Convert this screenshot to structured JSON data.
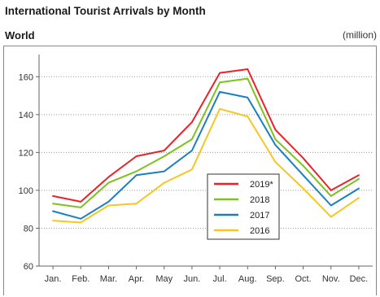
{
  "header": {
    "title": "International Tourist Arrivals by Month",
    "region": "World",
    "unit": "(million)"
  },
  "chart_data": {
    "type": "line",
    "title": "International Tourist Arrivals by Month",
    "xlabel": "",
    "ylabel": "(million)",
    "categories": [
      "Jan.",
      "Feb.",
      "Mar.",
      "Apr.",
      "May",
      "Jun.",
      "Jul.",
      "Aug.",
      "Sep.",
      "Oct.",
      "Nov.",
      "Dec."
    ],
    "ylim": [
      60,
      170
    ],
    "yticks": [
      60,
      80,
      100,
      120,
      140,
      160
    ],
    "grid": "horizontal-dotted",
    "legend_position": "center-right",
    "series": [
      {
        "name": "2019*",
        "color": "#e8232a",
        "values": [
          97,
          94,
          107,
          118,
          121,
          136,
          162,
          164,
          132,
          117,
          100,
          108
        ]
      },
      {
        "name": "2018",
        "color": "#7dc21e",
        "values": [
          93,
          91,
          104,
          110,
          118,
          127,
          157,
          159,
          127,
          113,
          97,
          106
        ]
      },
      {
        "name": "2017",
        "color": "#1a7fc1",
        "values": [
          89,
          85,
          94,
          108,
          110,
          121,
          152,
          149,
          124,
          108,
          92,
          101
        ]
      },
      {
        "name": "2016",
        "color": "#f6c623",
        "values": [
          84,
          83,
          92,
          93,
          104,
          111,
          143,
          139,
          115,
          101,
          86,
          96
        ]
      }
    ]
  }
}
